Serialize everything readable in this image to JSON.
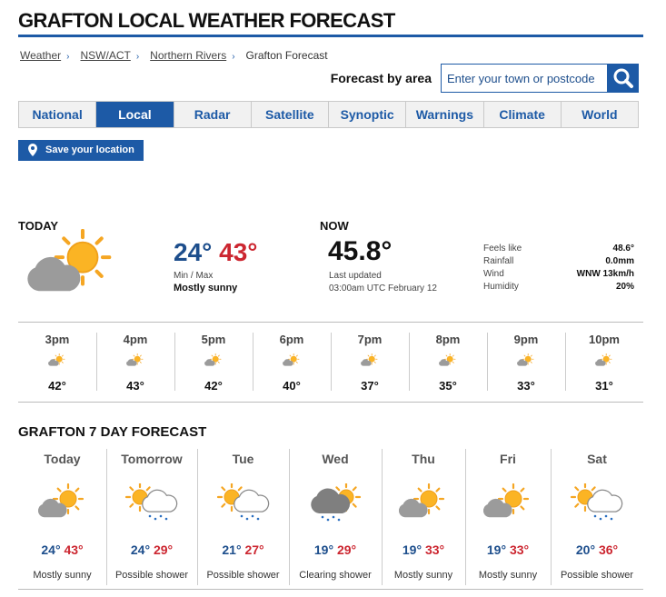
{
  "header": {
    "title": "GRAFTON LOCAL WEATHER FORECAST"
  },
  "breadcrumbs": [
    "Weather",
    "NSW/ACT",
    "Northern Rivers",
    "Grafton Forecast"
  ],
  "search": {
    "label": "Forecast by area",
    "placeholder": "Enter your town or postcode"
  },
  "tabs": [
    "National",
    "Local",
    "Radar",
    "Satellite",
    "Synoptic",
    "Warnings",
    "Climate",
    "World"
  ],
  "active_tab": 1,
  "save_button": "Save your location",
  "today": {
    "heading": "TODAY",
    "min": "24°",
    "max": "43°",
    "minmax_label": "Min / Max",
    "summary": "Mostly sunny"
  },
  "now": {
    "heading": "NOW",
    "temp": "45.8°",
    "updated_label": "Last updated",
    "updated": "03:00am UTC February 12",
    "details": [
      [
        "Feels like",
        "48.6°"
      ],
      [
        "Rainfall",
        "0.0mm"
      ],
      [
        "Wind",
        "WNW 13km/h"
      ],
      [
        "Humidity",
        "20%"
      ]
    ]
  },
  "hourly": [
    {
      "time": "3pm",
      "temp": "42°"
    },
    {
      "time": "4pm",
      "temp": "43°"
    },
    {
      "time": "5pm",
      "temp": "42°"
    },
    {
      "time": "6pm",
      "temp": "40°"
    },
    {
      "time": "7pm",
      "temp": "37°"
    },
    {
      "time": "8pm",
      "temp": "35°"
    },
    {
      "time": "9pm",
      "temp": "33°"
    },
    {
      "time": "10pm",
      "temp": "31°"
    }
  ],
  "week": {
    "title": "GRAFTON 7 DAY FORECAST",
    "days": [
      {
        "day": "Today",
        "min": "24°",
        "max": "43°",
        "summary": "Mostly sunny"
      },
      {
        "day": "Tomorrow",
        "min": "24°",
        "max": "29°",
        "summary": "Possible shower"
      },
      {
        "day": "Tue",
        "min": "21°",
        "max": "27°",
        "summary": "Possible shower"
      },
      {
        "day": "Wed",
        "min": "19°",
        "max": "29°",
        "summary": "Clearing shower"
      },
      {
        "day": "Thu",
        "min": "19°",
        "max": "33°",
        "summary": "Mostly sunny"
      },
      {
        "day": "Fri",
        "min": "19°",
        "max": "33°",
        "summary": "Mostly sunny"
      },
      {
        "day": "Sat",
        "min": "20°",
        "max": "36°",
        "summary": "Possible shower"
      }
    ]
  }
}
